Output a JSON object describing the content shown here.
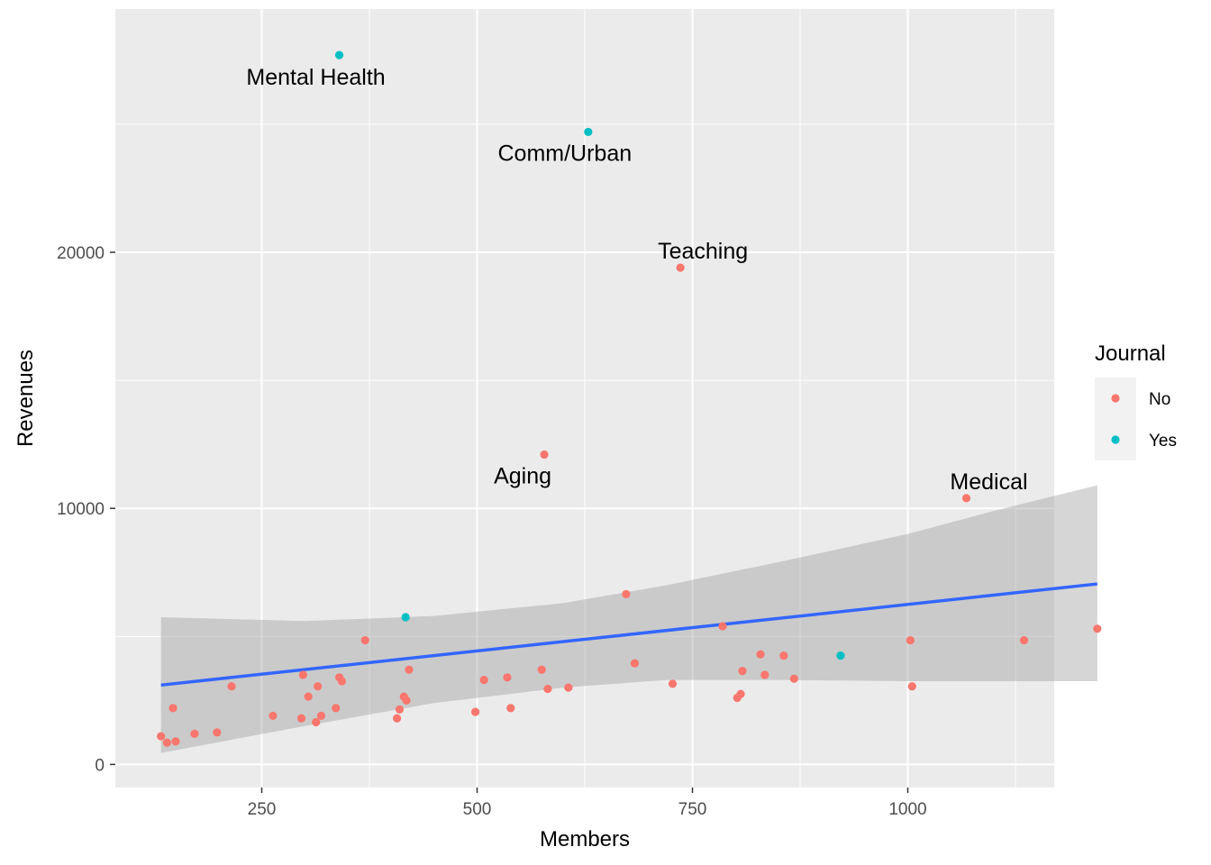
{
  "chart_data": {
    "type": "scatter",
    "xlabel": "Members",
    "ylabel": "Revenues",
    "xlim": [
      80,
      1170
    ],
    "ylim": [
      -900,
      29500
    ],
    "x_ticks": [
      250,
      500,
      750,
      1000,
      1250
    ],
    "x_minor_ticks": [
      375,
      625,
      875,
      1125
    ],
    "y_ticks": [
      0,
      10000,
      20000
    ],
    "y_tick_labels": [
      "0",
      "10000",
      "20000"
    ],
    "y_minor_ticks": [
      5000,
      15000,
      25000
    ],
    "grid": true,
    "legend": {
      "title": "Journal",
      "position": "right",
      "entries": [
        {
          "label": "No",
          "color": "#F8766D"
        },
        {
          "label": "Yes",
          "color": "#00BFC4"
        }
      ]
    },
    "colors": {
      "No": "#F8766D",
      "Yes": "#00BFC4",
      "fit_line": "#3366FF",
      "ribbon": "#999999",
      "panel": "#EBEBEB"
    },
    "series": [
      {
        "name": "No",
        "points": [
          [
            133,
            1100
          ],
          [
            140,
            850
          ],
          [
            147,
            2200
          ],
          [
            150,
            900
          ],
          [
            172,
            1200
          ],
          [
            198,
            1250
          ],
          [
            215,
            3050
          ],
          [
            263,
            1900
          ],
          [
            296,
            1800
          ],
          [
            298,
            3500
          ],
          [
            304,
            2650
          ],
          [
            313,
            1650
          ],
          [
            315,
            3050
          ],
          [
            319,
            1900
          ],
          [
            336,
            2200
          ],
          [
            340,
            3400
          ],
          [
            343,
            3250
          ],
          [
            370,
            4850
          ],
          [
            407,
            1800
          ],
          [
            410,
            2150
          ],
          [
            415,
            2650
          ],
          [
            418,
            2500
          ],
          [
            421,
            3700
          ],
          [
            498,
            2050
          ],
          [
            508,
            3300
          ],
          [
            535,
            3400
          ],
          [
            539,
            2200
          ],
          [
            578,
            12100
          ],
          [
            575,
            3700
          ],
          [
            582,
            2950
          ],
          [
            606,
            3000
          ],
          [
            673,
            6650
          ],
          [
            683,
            3950
          ],
          [
            736,
            19400
          ],
          [
            727,
            3150
          ],
          [
            785,
            5400
          ],
          [
            802,
            2600
          ],
          [
            806,
            2750
          ],
          [
            808,
            3650
          ],
          [
            829,
            4300
          ],
          [
            834,
            3500
          ],
          [
            856,
            4250
          ],
          [
            868,
            3350
          ],
          [
            1003,
            4850
          ],
          [
            1005,
            3050
          ],
          [
            1068,
            10400
          ],
          [
            1135,
            4850
          ],
          [
            1220,
            5300
          ]
        ]
      },
      {
        "name": "Yes",
        "points": [
          [
            340,
            27700
          ],
          [
            417,
            5750
          ],
          [
            629,
            24700
          ],
          [
            922,
            4250
          ]
        ]
      }
    ],
    "annotations": [
      {
        "text": "Mental Health",
        "x": 340,
        "y": 27700,
        "color_group": "Yes"
      },
      {
        "text": "Comm/Urban",
        "x": 629,
        "y": 24700,
        "color_group": "Yes"
      },
      {
        "text": "Teaching",
        "x": 736,
        "y": 19400,
        "color_group": "No"
      },
      {
        "text": "Aging",
        "x": 578,
        "y": 12100,
        "color_group": "No"
      },
      {
        "text": "Medical",
        "x": 1068,
        "y": 10400,
        "color_group": "No"
      }
    ],
    "fit": {
      "method": "linear",
      "x_range": [
        133,
        1220
      ],
      "line": [
        [
          133,
          3100
        ],
        [
          1220,
          7050
        ]
      ],
      "ribbon": [
        [
          133,
          450,
          5750
        ],
        [
          300,
          1500,
          5600
        ],
        [
          450,
          2400,
          5800
        ],
        [
          600,
          3000,
          6300
        ],
        [
          720,
          3300,
          7000
        ],
        [
          850,
          3300,
          7900
        ],
        [
          1000,
          3250,
          9000
        ],
        [
          1100,
          3250,
          9900
        ],
        [
          1220,
          3250,
          10900
        ]
      ]
    }
  }
}
